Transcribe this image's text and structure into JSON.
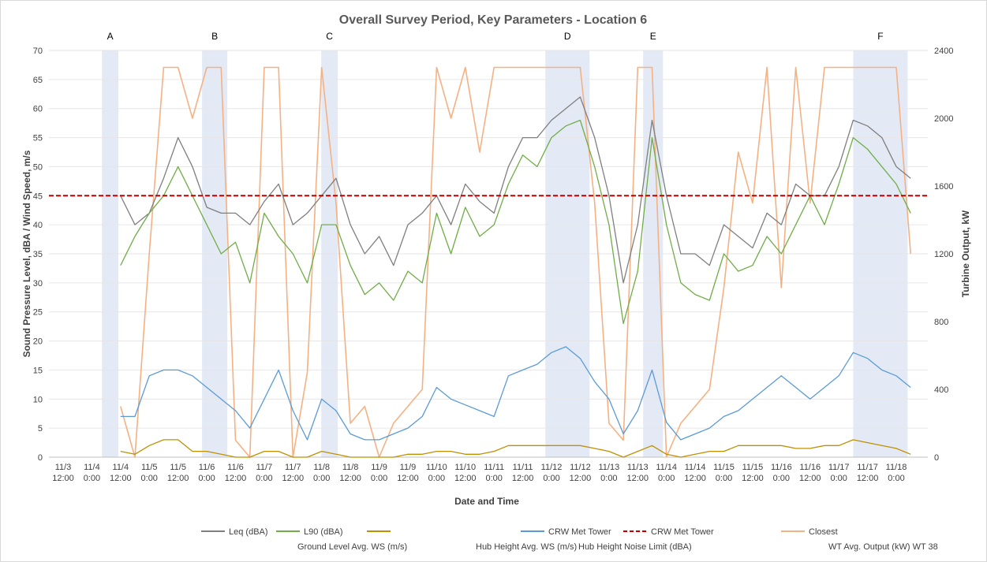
{
  "chart_data": {
    "type": "line",
    "title": "Overall Survey Period, Key Parameters - Location 6",
    "x_label": "Date and Time",
    "y_label": "Sound Pressure Level, dBA / Wind Speed, m/s",
    "y2_label": "Turbine Output, kW",
    "categories": [
      "11/3 12:00",
      null,
      "11/4 0:00",
      null,
      "11/4 12:00",
      null,
      "11/5 0:00",
      null,
      "11/5 12:00",
      null,
      "11/6 0:00",
      null,
      "11/6 12:00",
      null,
      "11/7 0:00",
      null,
      "11/7 12:00",
      null,
      "11/8 0:00",
      null,
      "11/8 12:00",
      null,
      "11/9 0:00",
      null,
      "11/9 12:00",
      null,
      "11/10 0:00",
      null,
      "11/10 12:00",
      null,
      "11/11 0:00",
      null,
      "11/11 12:00",
      null,
      "11/12 0:00",
      null,
      "11/12 12:00",
      null,
      "11/13 0:00",
      null,
      "11/13 12:00",
      null,
      "11/14 0:00",
      null,
      "11/14 12:00",
      null,
      "11/15 0:00",
      null,
      "11/15 12:00",
      null,
      "11/16 0:00",
      null,
      "11/16 12:00",
      null,
      "11/17 0:00",
      null,
      "11/17 12:00",
      null,
      "11/18 0:00",
      null
    ],
    "ylim": [
      0,
      70
    ],
    "yticks": [
      0,
      5,
      10,
      15,
      20,
      25,
      30,
      35,
      40,
      45,
      50,
      55,
      60,
      65,
      70
    ],
    "y2lim": [
      0,
      2400
    ],
    "y2ticks": [
      0,
      400,
      800,
      1200,
      1600,
      2000,
      2400
    ],
    "grid": true,
    "series": [
      {
        "name": "Closest\nWT Avg. Output (kW) WT 38",
        "color": "#f4b183",
        "axis": "y2",
        "values": [
          null,
          null,
          null,
          null,
          300,
          0,
          1200,
          2300,
          2300,
          2000,
          2300,
          2300,
          100,
          0,
          2300,
          2300,
          0,
          500,
          2300,
          1500,
          200,
          300,
          0,
          200,
          300,
          400,
          2300,
          2000,
          2300,
          1800,
          2300,
          2300,
          2300,
          2300,
          2300,
          2300,
          2300,
          1500,
          200,
          100,
          2300,
          2300,
          0,
          200,
          300,
          400,
          1000,
          1800,
          1500,
          2300,
          1000,
          2300,
          1500,
          2300,
          2300,
          2300,
          2300,
          2300,
          2300,
          1200
        ]
      },
      {
        "name": "Leq (dBA)",
        "color": "#7f7f7f",
        "values": [
          null,
          null,
          null,
          null,
          45,
          40,
          42,
          48,
          55,
          50,
          43,
          42,
          42,
          40,
          44,
          47,
          40,
          42,
          45,
          48,
          40,
          35,
          38,
          33,
          40,
          42,
          45,
          40,
          47,
          44,
          42,
          50,
          55,
          55,
          58,
          60,
          62,
          55,
          45,
          30,
          40,
          58,
          45,
          35,
          35,
          33,
          40,
          38,
          36,
          42,
          40,
          47,
          45,
          45,
          50,
          58,
          57,
          55,
          50,
          48
        ]
      },
      {
        "name": "L90 (dBA)",
        "color": "#70ad47",
        "values": [
          null,
          null,
          null,
          null,
          33,
          38,
          42,
          45,
          50,
          45,
          40,
          35,
          37,
          30,
          42,
          38,
          35,
          30,
          40,
          40,
          33,
          28,
          30,
          27,
          32,
          30,
          42,
          35,
          43,
          38,
          40,
          47,
          52,
          50,
          55,
          57,
          58,
          50,
          40,
          23,
          32,
          55,
          40,
          30,
          28,
          27,
          35,
          32,
          33,
          38,
          35,
          40,
          45,
          40,
          47,
          55,
          53,
          50,
          47,
          42
        ]
      },
      {
        "name": "\nGround Level Avg. WS (m/s)",
        "color": "#bf9000",
        "values": [
          null,
          null,
          null,
          null,
          1,
          0.5,
          2,
          3,
          3,
          1,
          1,
          0.5,
          0,
          0,
          1,
          1,
          0,
          0,
          1,
          0.5,
          0,
          0,
          0,
          0,
          0.5,
          0.5,
          1,
          1,
          0.5,
          0.5,
          1,
          2,
          2,
          2,
          2,
          2,
          2,
          1.5,
          1,
          0,
          1,
          2,
          0.5,
          0,
          0.5,
          1,
          1,
          2,
          2,
          2,
          2,
          1.5,
          1.5,
          2,
          2,
          3,
          2.5,
          2,
          1.5,
          0.5
        ]
      },
      {
        "name": "CRW Met Tower\nHub Height Avg. WS (m/s)",
        "color": "#5b9bd5",
        "values": [
          null,
          null,
          null,
          null,
          7,
          7,
          14,
          15,
          15,
          14,
          12,
          10,
          8,
          5,
          10,
          15,
          8,
          3,
          10,
          8,
          4,
          3,
          3,
          4,
          5,
          7,
          12,
          10,
          9,
          8,
          7,
          14,
          15,
          16,
          18,
          19,
          17,
          13,
          10,
          4,
          8,
          15,
          6,
          3,
          4,
          5,
          7,
          8,
          10,
          12,
          14,
          12,
          10,
          12,
          14,
          18,
          17,
          15,
          14,
          12
        ]
      }
    ],
    "reference_line": {
      "name": "CRW Met Tower\nHub Height Noise Limit (dBA)",
      "color": "#c00000",
      "value": 45
    },
    "shaded_regions": [
      {
        "label": "A",
        "start": 2.7,
        "end": 3.85
      },
      {
        "label": "B",
        "start": 9.67,
        "end": 11.43
      },
      {
        "label": "C",
        "start": 17.97,
        "end": 19.12
      },
      {
        "label": "D",
        "start": 33.57,
        "end": 36.65
      },
      {
        "label": "E",
        "start": 40.38,
        "end": 41.76
      },
      {
        "label": "F",
        "start": 55.0,
        "end": 58.79
      }
    ]
  }
}
